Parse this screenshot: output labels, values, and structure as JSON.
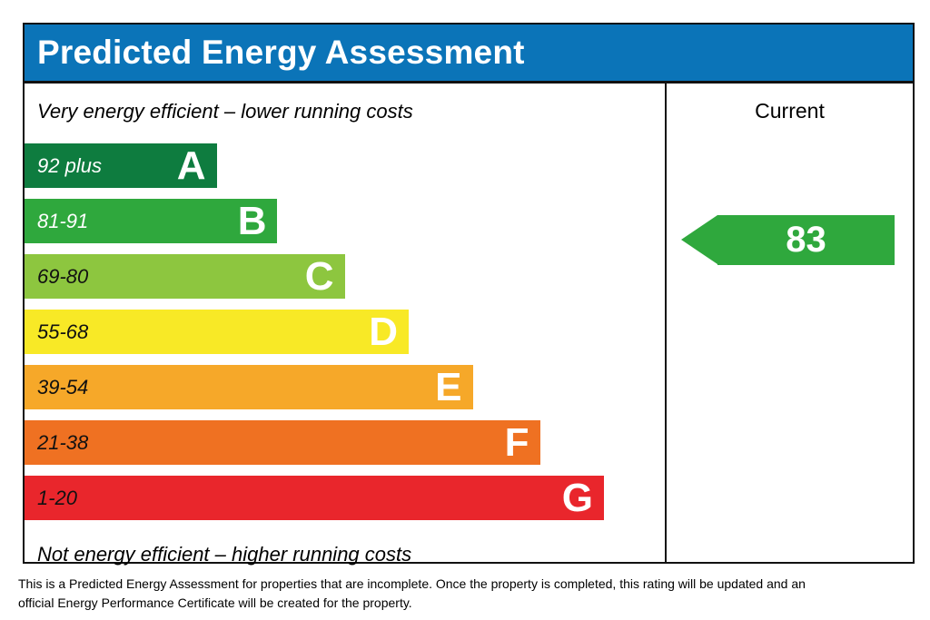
{
  "header": {
    "title": "Predicted Energy Assessment",
    "bg_color": "#0b74b8"
  },
  "chart": {
    "top_caption": "Very energy efficient – lower running costs",
    "bottom_caption": "Not energy efficient – higher running costs",
    "bands": [
      {
        "letter": "A",
        "range": "92 plus",
        "color": "#0e7c3f",
        "range_color": "#ffffff",
        "width_pct": 30
      },
      {
        "letter": "B",
        "range": "81-91",
        "color": "#2fa83d",
        "range_color": "#ffffff",
        "width_pct": 39.5
      },
      {
        "letter": "C",
        "range": "69-80",
        "color": "#8dc63f",
        "range_color": "#111111",
        "width_pct": 50
      },
      {
        "letter": "D",
        "range": "55-68",
        "color": "#f8e926",
        "range_color": "#111111",
        "width_pct": 60
      },
      {
        "letter": "E",
        "range": "39-54",
        "color": "#f6a829",
        "range_color": "#111111",
        "width_pct": 70
      },
      {
        "letter": "F",
        "range": "21-38",
        "color": "#ef7122",
        "range_color": "#111111",
        "width_pct": 80.5
      },
      {
        "letter": "G",
        "range": "1-20",
        "color": "#e9262c",
        "range_color": "#111111",
        "width_pct": 90.5
      }
    ]
  },
  "current": {
    "header": "Current",
    "value": "83",
    "band": "B",
    "color": "#2fa83d"
  },
  "footer": {
    "lines": [
      "This is a Predicted Energy Assessment for properties that are incomplete. Once the property is completed, this rating will be updated and an",
      "official Energy Performance Certificate will be created for the property."
    ]
  },
  "chart_data": {
    "type": "bar",
    "title": "Predicted Energy Assessment",
    "orientation": "horizontal",
    "categories": [
      "A",
      "B",
      "C",
      "D",
      "E",
      "F",
      "G"
    ],
    "band_ranges": [
      "92 plus",
      "81-91",
      "69-80",
      "55-68",
      "39-54",
      "21-38",
      "1-20"
    ],
    "bar_length_pct": [
      30,
      39.5,
      50,
      60,
      70,
      80.5,
      90.5
    ],
    "band_colors": [
      "#0e7c3f",
      "#2fa83d",
      "#8dc63f",
      "#f8e926",
      "#f6a829",
      "#ef7122",
      "#e9262c"
    ],
    "current_rating": 83,
    "current_band": "B",
    "columns": [
      "Current"
    ],
    "annotations": [
      "Very energy efficient – lower running costs",
      "Not energy efficient – higher running costs"
    ],
    "legend": "none",
    "grid": false
  }
}
